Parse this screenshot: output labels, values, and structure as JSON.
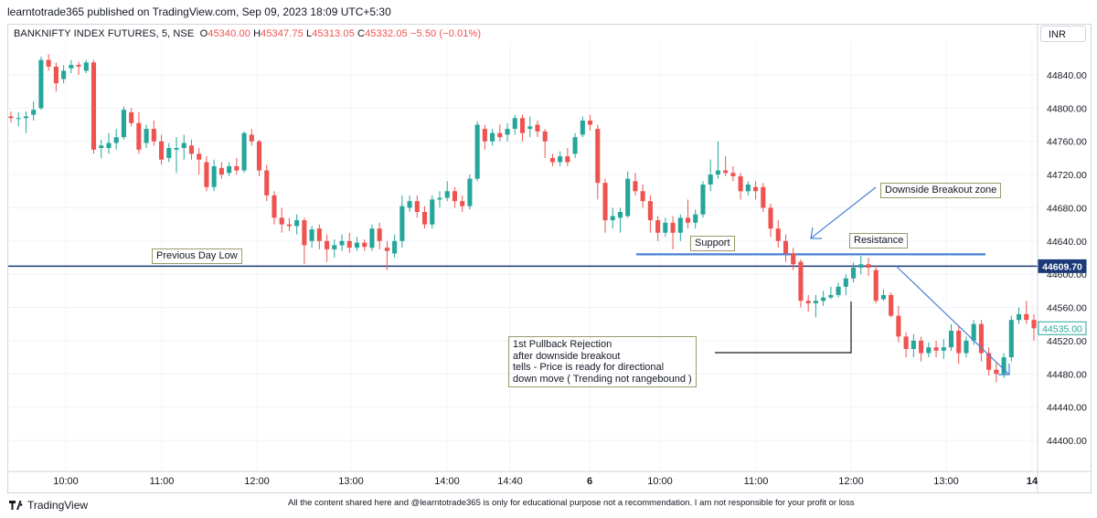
{
  "header": {
    "publish_line": "learntotrade365 published on TradingView.com, Sep 09, 2023 18:09 UTC+5:30",
    "symbol": "BANKNIFTY INDEX FUTURES, 5, NSE",
    "o_label": "O",
    "o_value": "45340.00",
    "h_label": "H",
    "h_value": "45347.75",
    "l_label": "L",
    "l_value": "45313.05",
    "c_label": "C",
    "c_value": "45332.05",
    "change": "−5.50 (−0.01%)",
    "currency": "INR"
  },
  "footer": {
    "brand": "TradingView",
    "note": "All the content shared here and @learntotrade365 is only for educational purpose not a recommendation. I am not responsible for your profit or loss"
  },
  "chart_data": {
    "type": "candlestick",
    "y_ticks": [
      44840,
      44800,
      44760,
      44720,
      44680,
      44640,
      44600,
      44560,
      44520,
      44480,
      44440,
      44400
    ],
    "y_tick_labels": [
      "44840.00",
      "44800.00",
      "44760.00",
      "44720.00",
      "44680.00",
      "44640.00",
      "44600.00",
      "44560.00",
      "44520.00",
      "44480.00",
      "44440.00",
      "44400.00"
    ],
    "x_ticks": [
      {
        "label": "10:00",
        "bold": false
      },
      {
        "label": "11:00",
        "bold": false
      },
      {
        "label": "12:00",
        "bold": false
      },
      {
        "label": "13:00",
        "bold": false
      },
      {
        "label": "14:00",
        "bold": false
      },
      {
        "label": "14:40",
        "bold": false
      },
      {
        "label": "6",
        "bold": true
      },
      {
        "label": "10:00",
        "bold": false
      },
      {
        "label": "11:00",
        "bold": false
      },
      {
        "label": "12:00",
        "bold": false
      },
      {
        "label": "13:00",
        "bold": false
      },
      {
        "label": "14",
        "bold": true
      }
    ],
    "price_tags": [
      {
        "value": 44609.7,
        "label": "44609.70",
        "style": "dark"
      },
      {
        "value": 44535.0,
        "label": "44535.00",
        "style": "teal"
      }
    ],
    "horizontal_lines": [
      {
        "name": "previous-day-low",
        "value": 44609.7,
        "color": "#1c3a78"
      },
      {
        "name": "support-line",
        "value": 44624,
        "color": "#4a7fd4"
      }
    ],
    "annotations": [
      {
        "name": "previous-day-low-label",
        "text": "Previous Day Low",
        "bg": "#ffffd0"
      },
      {
        "name": "support-label",
        "text": "Support",
        "bg": "#c8eee4"
      },
      {
        "name": "resistance-label",
        "text": "Resistance",
        "bg": "#f8c8c8"
      },
      {
        "name": "downside-breakout-label",
        "text": "Downside Breakout zone",
        "bg": "#ffffd0"
      },
      {
        "name": "pullback-note",
        "lines": [
          "1st Pullback Rejection",
          "after downside breakout",
          "tells - Price is ready for directional",
          "down move ( Trending not rangebound )"
        ],
        "bg": "#ffffd0"
      }
    ],
    "colors": {
      "up": "#26a69a",
      "down": "#ef5350",
      "grid": "#f0f3fa"
    },
    "candles": [
      [
        44790,
        44788,
        44796,
        44783
      ],
      [
        44788,
        44788,
        44795,
        44778
      ],
      [
        44788,
        44790,
        44796,
        44770
      ],
      [
        44792,
        44798,
        44808,
        44785
      ],
      [
        44800,
        44858,
        44862,
        44798
      ],
      [
        44858,
        44850,
        44865,
        44845
      ],
      [
        44850,
        44830,
        44855,
        44820
      ],
      [
        44835,
        44845,
        44852,
        44830
      ],
      [
        44848,
        44852,
        44858,
        44842
      ],
      [
        44852,
        44850,
        44856,
        44840
      ],
      [
        44845,
        44855,
        44858,
        44842
      ],
      [
        44855,
        44750,
        44858,
        44745
      ],
      [
        44752,
        44755,
        44762,
        44740
      ],
      [
        44752,
        44758,
        44770,
        44745
      ],
      [
        44758,
        44765,
        44775,
        44750
      ],
      [
        44765,
        44798,
        44802,
        44762
      ],
      [
        44795,
        44782,
        44800,
        44778
      ],
      [
        44782,
        44750,
        44795,
        44745
      ],
      [
        44758,
        44775,
        44780,
        44752
      ],
      [
        44775,
        44760,
        44785,
        44755
      ],
      [
        44760,
        44738,
        44768,
        44732
      ],
      [
        44740,
        44752,
        44758,
        44735
      ],
      [
        44750,
        44752,
        44765,
        44722
      ],
      [
        44752,
        44758,
        44768,
        44738
      ],
      [
        44755,
        44745,
        44762,
        44738
      ],
      [
        44745,
        44738,
        44752,
        44720
      ],
      [
        44735,
        44705,
        44742,
        44700
      ],
      [
        44705,
        44730,
        44738,
        44700
      ],
      [
        44728,
        44720,
        44735,
        44715
      ],
      [
        44722,
        44730,
        44735,
        44718
      ],
      [
        44730,
        44725,
        44740,
        44720
      ],
      [
        44725,
        44770,
        44772,
        44722
      ],
      [
        44768,
        44760,
        44775,
        44755
      ],
      [
        44760,
        44725,
        44762,
        44718
      ],
      [
        44725,
        44695,
        44732,
        44688
      ],
      [
        44695,
        44668,
        44700,
        44660
      ],
      [
        44668,
        44660,
        44680,
        44650
      ],
      [
        44660,
        44658,
        44668,
        44652
      ],
      [
        44658,
        44665,
        44672,
        44648
      ],
      [
        44665,
        44635,
        44668,
        44612
      ],
      [
        44640,
        44654,
        44658,
        44632
      ],
      [
        44655,
        44640,
        44660,
        44630
      ],
      [
        44640,
        44630,
        44648,
        44615
      ],
      [
        44630,
        44635,
        44642,
        44620
      ],
      [
        44635,
        44640,
        44648,
        44628
      ],
      [
        44640,
        44632,
        44650,
        44626
      ],
      [
        44632,
        44638,
        44645,
        44628
      ],
      [
        44638,
        44633,
        44642,
        44628
      ],
      [
        44632,
        44655,
        44660,
        44628
      ],
      [
        44655,
        44640,
        44662,
        44630
      ],
      [
        44632,
        44628,
        44640,
        44605
      ],
      [
        44625,
        44640,
        44648,
        44620
      ],
      [
        44640,
        44682,
        44695,
        44632
      ],
      [
        44680,
        44688,
        44695,
        44675
      ],
      [
        44688,
        44675,
        44695,
        44668
      ],
      [
        44675,
        44660,
        44682,
        44655
      ],
      [
        44660,
        44690,
        44695,
        44655
      ],
      [
        44690,
        44692,
        44700,
        44680
      ],
      [
        44692,
        44700,
        44712,
        44688
      ],
      [
        44700,
        44688,
        44705,
        44680
      ],
      [
        44688,
        44682,
        44695,
        44675
      ],
      [
        44682,
        44715,
        44720,
        44678
      ],
      [
        44715,
        44780,
        44784,
        44712
      ],
      [
        44775,
        44760,
        44780,
        44750
      ],
      [
        44760,
        44770,
        44775,
        44755
      ],
      [
        44770,
        44765,
        44780,
        44760
      ],
      [
        44768,
        44775,
        44782,
        44760
      ],
      [
        44775,
        44788,
        44792,
        44768
      ],
      [
        44788,
        44770,
        44792,
        44760
      ],
      [
        44775,
        44778,
        44790,
        44765
      ],
      [
        44780,
        44772,
        44785,
        44765
      ],
      [
        44772,
        44760,
        44775,
        44740
      ],
      [
        44740,
        44735,
        44745,
        44730
      ],
      [
        44735,
        44742,
        44748,
        44730
      ],
      [
        44742,
        44735,
        44752,
        44730
      ],
      [
        44745,
        44765,
        44770,
        44740
      ],
      [
        44768,
        44785,
        44790,
        44765
      ],
      [
        44785,
        44780,
        44792,
        44773
      ],
      [
        44775,
        44710,
        44780,
        44690
      ],
      [
        44710,
        44665,
        44715,
        44650
      ],
      [
        44665,
        44670,
        44680,
        44655
      ],
      [
        44668,
        44675,
        44680,
        44650
      ],
      [
        44670,
        44715,
        44724,
        44668
      ],
      [
        44712,
        44700,
        44722,
        44695
      ],
      [
        44700,
        44688,
        44708,
        44680
      ],
      [
        44688,
        44665,
        44695,
        44650
      ],
      [
        44665,
        44650,
        44670,
        44640
      ],
      [
        44650,
        44662,
        44668,
        44645
      ],
      [
        44662,
        44650,
        44670,
        44630
      ],
      [
        44650,
        44668,
        44672,
        44640
      ],
      [
        44668,
        44662,
        44690,
        44655
      ],
      [
        44662,
        44672,
        44678,
        44655
      ],
      [
        44672,
        44708,
        44712,
        44668
      ],
      [
        44708,
        44720,
        44738,
        44700
      ],
      [
        44720,
        44725,
        44760,
        44715
      ],
      [
        44725,
        44722,
        44742,
        44718
      ],
      [
        44722,
        44718,
        44730,
        44712
      ],
      [
        44718,
        44700,
        44722,
        44690
      ],
      [
        44700,
        44708,
        44712,
        44695
      ],
      [
        44705,
        44700,
        44712,
        44690
      ],
      [
        44705,
        44680,
        44710,
        44675
      ],
      [
        44680,
        44655,
        44685,
        44645
      ],
      [
        44655,
        44640,
        44665,
        44632
      ],
      [
        44640,
        44625,
        44648,
        44615
      ],
      [
        44625,
        44612,
        44632,
        44605
      ],
      [
        44615,
        44568,
        44618,
        44560
      ],
      [
        44568,
        44565,
        44575,
        44555
      ],
      [
        44565,
        44568,
        44575,
        44548
      ],
      [
        44568,
        44572,
        44580,
        44562
      ],
      [
        44572,
        44575,
        44585,
        44570
      ],
      [
        44575,
        44585,
        44590,
        44572
      ],
      [
        44585,
        44595,
        44600,
        44575
      ],
      [
        44595,
        44608,
        44614,
        44590
      ],
      [
        44608,
        44612,
        44622,
        44600
      ],
      [
        44612,
        44608,
        44620,
        44598
      ],
      [
        44605,
        44568,
        44610,
        44565
      ],
      [
        44570,
        44575,
        44582,
        44568
      ],
      [
        44575,
        44550,
        44578,
        44548
      ],
      [
        44550,
        44525,
        44562,
        44518
      ],
      [
        44525,
        44510,
        44530,
        44500
      ],
      [
        44510,
        44520,
        44528,
        44500
      ],
      [
        44520,
        44505,
        44525,
        44495
      ],
      [
        44505,
        44512,
        44518,
        44500
      ],
      [
        44512,
        44508,
        44520,
        44500
      ],
      [
        44508,
        44512,
        44522,
        44498
      ],
      [
        44512,
        44532,
        44540,
        44508
      ],
      [
        44532,
        44505,
        44538,
        44492
      ],
      [
        44505,
        44520,
        44525,
        44500
      ],
      [
        44520,
        44540,
        44545,
        44515
      ],
      [
        44540,
        44505,
        44545,
        44495
      ],
      [
        44505,
        44485,
        44512,
        44478
      ],
      [
        44485,
        44480,
        44495,
        44470
      ],
      [
        44480,
        44500,
        44505,
        44475
      ],
      [
        44500,
        44545,
        44550,
        44495
      ],
      [
        44545,
        44552,
        44560,
        44540
      ],
      [
        44552,
        44545,
        44568,
        44540
      ],
      [
        44545,
        44535,
        44552,
        44520
      ]
    ]
  }
}
